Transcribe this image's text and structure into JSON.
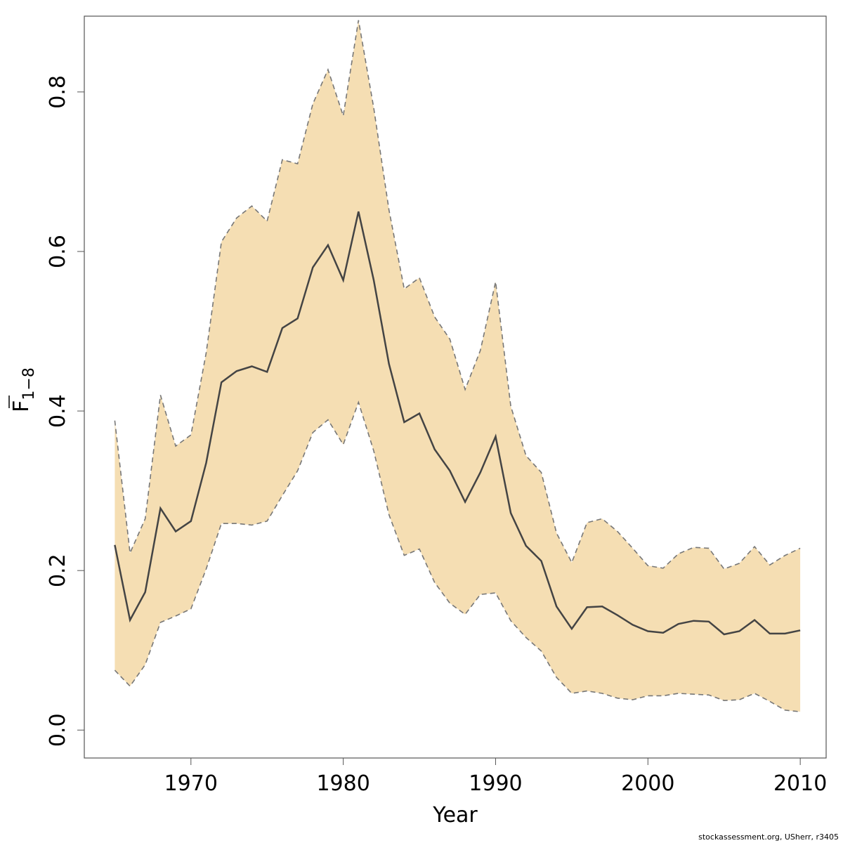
{
  "chart_data": {
    "type": "area",
    "xlabel": "Year",
    "ylabel": {
      "main": "F",
      "subscript": "1−8",
      "overline": true
    },
    "xlim": [
      1963,
      2011.7
    ],
    "ylim": [
      -0.035,
      0.895
    ],
    "x_ticks": [
      1970,
      1980,
      1990,
      2000,
      2010
    ],
    "y_ticks": [
      0.0,
      0.2,
      0.4,
      0.6,
      0.8
    ],
    "x_tick_labels": [
      "1970",
      "1980",
      "1990",
      "2000",
      "2010"
    ],
    "y_tick_labels": [
      "0.0",
      "0.2",
      "0.4",
      "0.6",
      "0.8"
    ],
    "grid": false,
    "legend": "none",
    "colors": {
      "band": "#F5DEB3",
      "line": "#444444",
      "bound": "#777777"
    },
    "x": [
      1965,
      1966,
      1967,
      1968,
      1969,
      1970,
      1971,
      1972,
      1973,
      1974,
      1975,
      1976,
      1977,
      1978,
      1979,
      1980,
      1981,
      1982,
      1983,
      1984,
      1985,
      1986,
      1987,
      1988,
      1989,
      1990,
      1991,
      1992,
      1993,
      1994,
      1995,
      1996,
      1997,
      1998,
      1999,
      2000,
      2001,
      2002,
      2003,
      2004,
      2005,
      2006,
      2007,
      2008,
      2009,
      2010
    ],
    "series": [
      {
        "values": [
          0.232,
          0.138,
          0.173,
          0.278,
          0.249,
          0.262,
          0.335,
          0.436,
          0.45,
          0.456,
          0.449,
          0.504,
          0.516,
          0.58,
          0.608,
          0.564,
          0.65,
          0.564,
          0.459,
          0.386,
          0.397,
          0.352,
          0.325,
          0.286,
          0.323,
          0.368,
          0.272,
          0.231,
          0.212,
          0.155,
          0.127,
          0.154,
          0.155,
          0.144,
          0.132,
          0.124,
          0.122,
          0.133,
          0.137,
          0.136,
          0.12,
          0.124,
          0.138,
          0.121,
          0.121,
          0.125
        ]
      },
      {
        "values": [
          0.388,
          0.222,
          0.265,
          0.42,
          0.356,
          0.37,
          0.473,
          0.612,
          0.642,
          0.657,
          0.638,
          0.715,
          0.71,
          0.785,
          0.828,
          0.77,
          0.89,
          0.78,
          0.652,
          0.553,
          0.567,
          0.518,
          0.49,
          0.427,
          0.476,
          0.562,
          0.406,
          0.344,
          0.323,
          0.247,
          0.21,
          0.26,
          0.265,
          0.249,
          0.228,
          0.206,
          0.203,
          0.221,
          0.229,
          0.228,
          0.202,
          0.209,
          0.23,
          0.207,
          0.219,
          0.228
        ]
      },
      {
        "values": [
          0.075,
          0.055,
          0.082,
          0.135,
          0.143,
          0.152,
          0.202,
          0.259,
          0.259,
          0.257,
          0.262,
          0.294,
          0.325,
          0.373,
          0.389,
          0.358,
          0.411,
          0.35,
          0.27,
          0.219,
          0.227,
          0.185,
          0.159,
          0.145,
          0.17,
          0.172,
          0.137,
          0.116,
          0.099,
          0.066,
          0.046,
          0.049,
          0.046,
          0.04,
          0.038,
          0.043,
          0.043,
          0.046,
          0.045,
          0.044,
          0.037,
          0.038,
          0.046,
          0.036,
          0.025,
          0.023
        ]
      }
    ]
  },
  "credit": "stockassessment.org, USherr, r3405"
}
